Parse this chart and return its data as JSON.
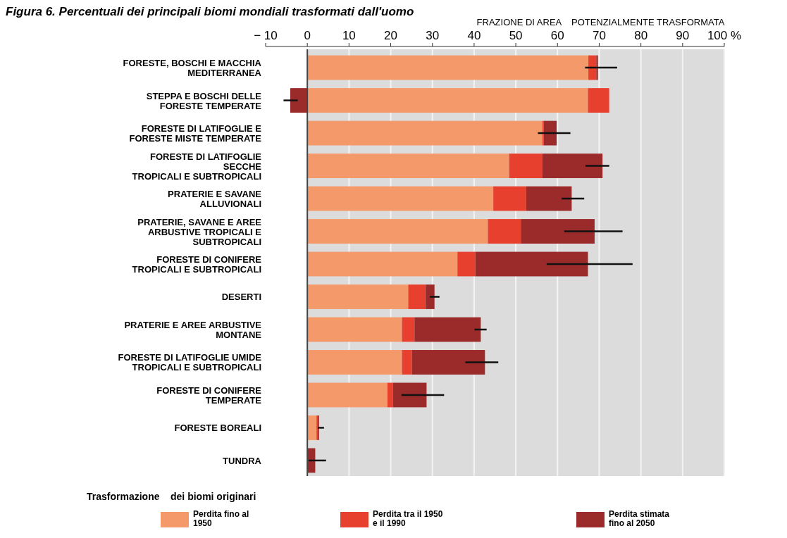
{
  "chart_data": {
    "type": "bar",
    "orientation": "horizontal",
    "stacked": true,
    "title": "Figura 6. Percentuali dei principali biomi mondiali trasformati dall'uomo",
    "xlabel": "FRAZIONE DI AREA    POTENZIALMENTE TRASFORMATA",
    "legend_title": "Trasformazione    dei biomi originari",
    "categories": [
      "FORESTE, BOSCHI E MACCHIA\nMEDITERRANEA",
      "STEPPA E BOSCHI DELLE\nFORESTE TEMPERATE",
      "FORESTE DI LATIFOGLIE E\nFORESTE MISTE TEMPERATE",
      "FORESTE DI LATIFOGLIE\nSECCHE\nTROPICALI E SUBTROPICALI",
      "PRATERIE E SAVANE\nALLUVIONALI",
      "PRATERIE, SAVANE E AREE\nARBUSTIVE      TROPICALI E\nSUBTROPICALI",
      "FORESTE DI CONIFERE\nTROPICALI E SUBTROPICALI",
      "DESERTI",
      "PRATERIE E AREE ARBUSTIVE\nMONTANE",
      "FORESTE DI LATIFOGLIE UMIDE\nTROPICALI E SUBTROPICALI",
      "FORESTE DI CONIFERE\nTEMPERATE",
      "FORESTE BOREALI",
      "TUNDRA"
    ],
    "series": [
      {
        "name": "Perdita fino al\n1950",
        "color": "#f4996a",
        "values": [
          67.4,
          67.3,
          56.4,
          48.4,
          44.6,
          43.3,
          36.0,
          24.2,
          22.7,
          22.7,
          19.2,
          2.2,
          0
        ]
      },
      {
        "name": "Perdita tra il 1950\ne il 1990",
        "color": "#e8402f",
        "values": [
          1.9,
          5.1,
          0.3,
          8.0,
          7.9,
          7.9,
          4.3,
          4.2,
          3.0,
          2.4,
          1.3,
          0.3,
          0
        ]
      },
      {
        "name": "Perdita stimata\nfino al 2050",
        "color": "#9b2a2a",
        "values": [
          0.4,
          -4.1,
          3.1,
          14.4,
          10.9,
          17.7,
          27.0,
          2.1,
          15.9,
          17.5,
          8.1,
          0.3,
          1.9
        ],
        "errors": [
          [
            66.6,
            74.3
          ],
          [
            -5.7,
            -2.3
          ],
          [
            55.3,
            63.1
          ],
          [
            66.7,
            72.4
          ],
          [
            61.0,
            66.4
          ],
          [
            61.6,
            75.6
          ],
          [
            57.4,
            78.0
          ],
          [
            29.4,
            31.7
          ],
          [
            40.1,
            43.0
          ],
          [
            37.9,
            45.8
          ],
          [
            22.6,
            32.8
          ],
          [
            2.5,
            4.0
          ],
          [
            0.3,
            4.5
          ]
        ]
      }
    ],
    "xlim": [
      -10,
      100
    ],
    "xticks": [
      {
        "value": -10,
        "label": "− 10"
      },
      0,
      10,
      20,
      30,
      40,
      50,
      60,
      70,
      80,
      90,
      {
        "value": 100,
        "label": "100 %"
      }
    ],
    "grid": "x",
    "legend": "bottom"
  }
}
